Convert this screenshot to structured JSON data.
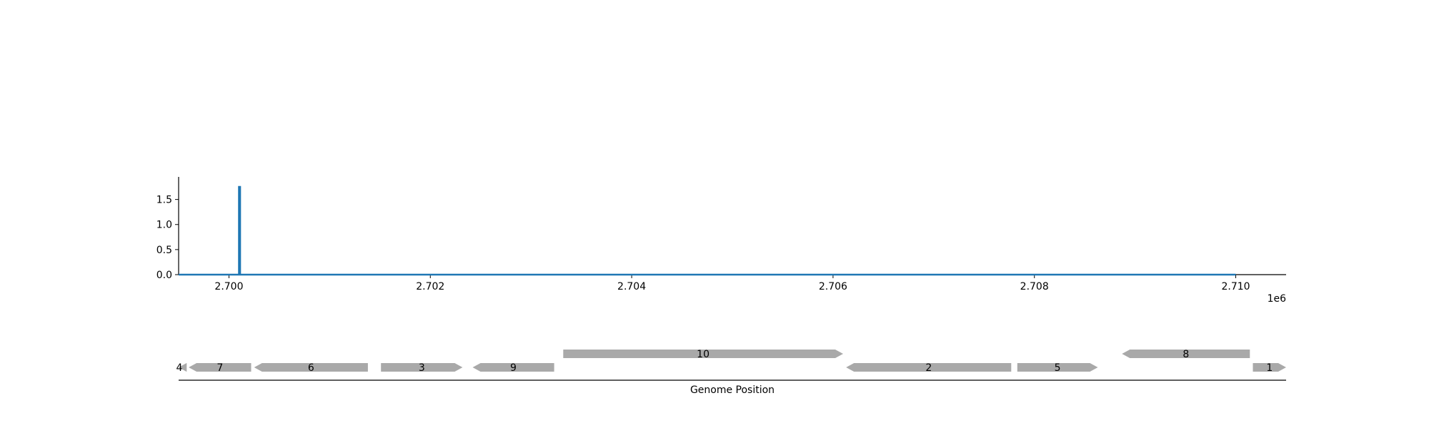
{
  "chart_data": [
    {
      "type": "line",
      "title": "",
      "xlabel": "",
      "ylabel": "",
      "x_offset_label": "1e6",
      "xlim": [
        2699500,
        2710500
      ],
      "ylim": [
        0,
        1.95
      ],
      "x_ticks": [
        2700000,
        2702000,
        2704000,
        2706000,
        2708000,
        2710000
      ],
      "x_tick_labels": [
        "2.700",
        "2.702",
        "2.704",
        "2.706",
        "2.708",
        "2.710"
      ],
      "y_ticks": [
        0,
        0.5,
        1.0,
        1.5
      ],
      "y_tick_labels": [
        "0.0",
        "0.5",
        "1.0",
        "1.5"
      ],
      "grid": false,
      "color": "#1f77b4",
      "series": [
        {
          "x": [
            2699500,
            2700100,
            2700100,
            2700110,
            2700110,
            2710000
          ],
          "y": [
            0,
            0,
            1.75,
            1.75,
            0,
            0
          ]
        }
      ]
    },
    {
      "type": "gene_track",
      "xlabel": "Genome Position",
      "xlim": [
        2699500,
        2710500
      ],
      "color": "#a9a9a9",
      "genes": [
        {
          "label": "4",
          "start": 2699500,
          "end": 2699580,
          "strand": -1,
          "row": 0
        },
        {
          "label": "7",
          "start": 2699600,
          "end": 2700220,
          "strand": -1,
          "row": 0
        },
        {
          "label": "6",
          "start": 2700250,
          "end": 2701380,
          "strand": -1,
          "row": 0
        },
        {
          "label": "3",
          "start": 2701510,
          "end": 2702320,
          "strand": 1,
          "row": 0
        },
        {
          "label": "9",
          "start": 2702420,
          "end": 2703230,
          "strand": -1,
          "row": 0
        },
        {
          "label": "10",
          "start": 2703320,
          "end": 2706100,
          "strand": 1,
          "row": 1
        },
        {
          "label": "2",
          "start": 2706130,
          "end": 2707770,
          "strand": -1,
          "row": 0
        },
        {
          "label": "5",
          "start": 2707830,
          "end": 2708630,
          "strand": 1,
          "row": 0
        },
        {
          "label": "8",
          "start": 2708870,
          "end": 2710140,
          "strand": -1,
          "row": 1
        },
        {
          "label": "1",
          "start": 2710170,
          "end": 2710500,
          "strand": 1,
          "row": 0
        }
      ]
    }
  ]
}
